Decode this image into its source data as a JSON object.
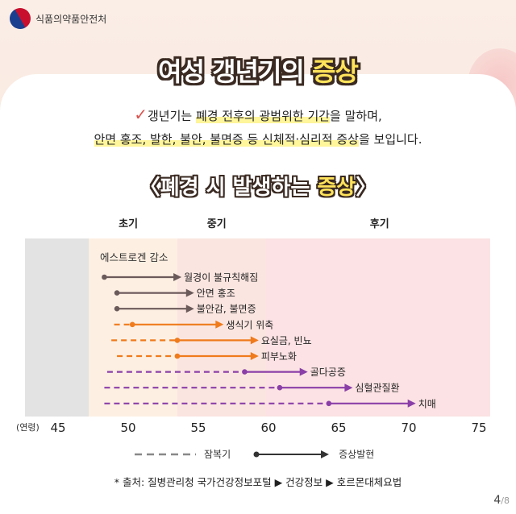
{
  "brand": {
    "logo_icon": "mfds-taegeuk-logo-icon",
    "name": "식품의약품안전처"
  },
  "title": {
    "part1": "여성 갱년기의 ",
    "part2": "증상"
  },
  "intro": {
    "line1_a": "갱년기는 ",
    "line1_b": "폐경 전후의 광범위한 기간",
    "line1_c": "을 말하며,",
    "line2_a": "안면 홍조, 발한, 불안, 불면증 등 신체적·심리적 증상",
    "line2_b": "을 보입니다."
  },
  "subtitle": {
    "open": "〈",
    "part1": "폐경 시 발생하는 ",
    "part2": "증상",
    "close": "〉"
  },
  "chart_data": {
    "type": "timeline",
    "x_label": "(연령)",
    "x_ticks": [
      45,
      50,
      55,
      60,
      65,
      70,
      75
    ],
    "xlim": [
      43.5,
      76
    ],
    "stages": [
      {
        "label": "초기",
        "start": 47.2,
        "end": 53.5,
        "color": "#fdefe2"
      },
      {
        "label": "중기",
        "start": 53.5,
        "end": 59.8,
        "color": "#fbe5e0"
      },
      {
        "label": "후기",
        "start": 59.8,
        "end": 75.8,
        "color": "#fce2e4"
      }
    ],
    "premenopause_color": "#e3e3e3",
    "estrogen_label": "에스트로겐 감소",
    "symptoms": [
      {
        "label": "월경이 불규칙해짐",
        "latent_start": null,
        "onset": 48.3,
        "end": 53.8,
        "color": "#6b5a5a"
      },
      {
        "label": "안면 홍조",
        "latent_start": null,
        "onset": 49.2,
        "end": 54.7,
        "color": "#6b5a5a"
      },
      {
        "label": "불안감, 불면증",
        "latent_start": null,
        "onset": 49.2,
        "end": 54.7,
        "color": "#6b5a5a"
      },
      {
        "label": "생식기 위축",
        "latent_start": 49.0,
        "onset": 50.3,
        "end": 56.8,
        "color": "#ef7b1c"
      },
      {
        "label": "요실금, 빈뇨",
        "latent_start": 48.8,
        "onset": 53.5,
        "end": 59.3,
        "color": "#ef7b1c"
      },
      {
        "label": "피부노화",
        "latent_start": 49.2,
        "onset": 53.5,
        "end": 59.3,
        "color": "#ef7b1c"
      },
      {
        "label": "골다공증",
        "latent_start": 48.5,
        "onset": 58.3,
        "end": 62.8,
        "color": "#8a3fa8"
      },
      {
        "label": "심혈관질환",
        "latent_start": 48.3,
        "onset": 60.8,
        "end": 66.0,
        "color": "#8a3fa8"
      },
      {
        "label": "치매",
        "latent_start": 48.3,
        "onset": 64.3,
        "end": 70.5,
        "color": "#8a3fa8"
      }
    ]
  },
  "legend": {
    "latent": "잠복기",
    "onset": "증상발현"
  },
  "source": "* 출처: 질병관리청 국가건강정보포털 ▶ 건강정보 ▶ 호르몬대체요법",
  "page": {
    "current": "4",
    "total": "/8"
  }
}
